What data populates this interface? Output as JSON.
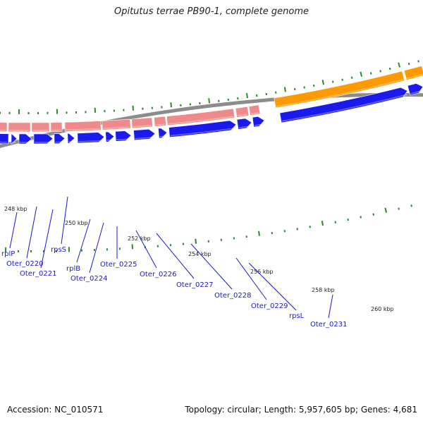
{
  "header": {
    "title": "Opitutus terrae PB90-1, complete genome"
  },
  "footer": {
    "accession": "Accession: NC_010571",
    "summary": "Topology: circular; Length: 5,957,605 bp; Genes: 4,681"
  },
  "colors": {
    "backbone": "#8c8c8c",
    "forward_gene": "#1a1aee",
    "reverse_gene": "#ef8a8a",
    "orange_gene": "#ff9900",
    "tick": "#2a8a2a",
    "gene_label": "#1a1acc"
  },
  "scale_labels": [
    {
      "text": "248 kbp"
    },
    {
      "text": "250 kbp"
    },
    {
      "text": "252 kbp"
    },
    {
      "text": "254 kbp"
    },
    {
      "text": "256 kbp"
    },
    {
      "text": "258 kbp"
    },
    {
      "text": "260 kbp"
    }
  ],
  "gene_labels": [
    "rplP",
    "Oter_0220",
    "Oter_0221",
    "rpsS",
    "rplB",
    "Oter_0224",
    "Oter_0225",
    "Oter_0226",
    "Oter_0227",
    "Oter_0228",
    "Oter_0229",
    "rpsL",
    "Oter_0231"
  ]
}
